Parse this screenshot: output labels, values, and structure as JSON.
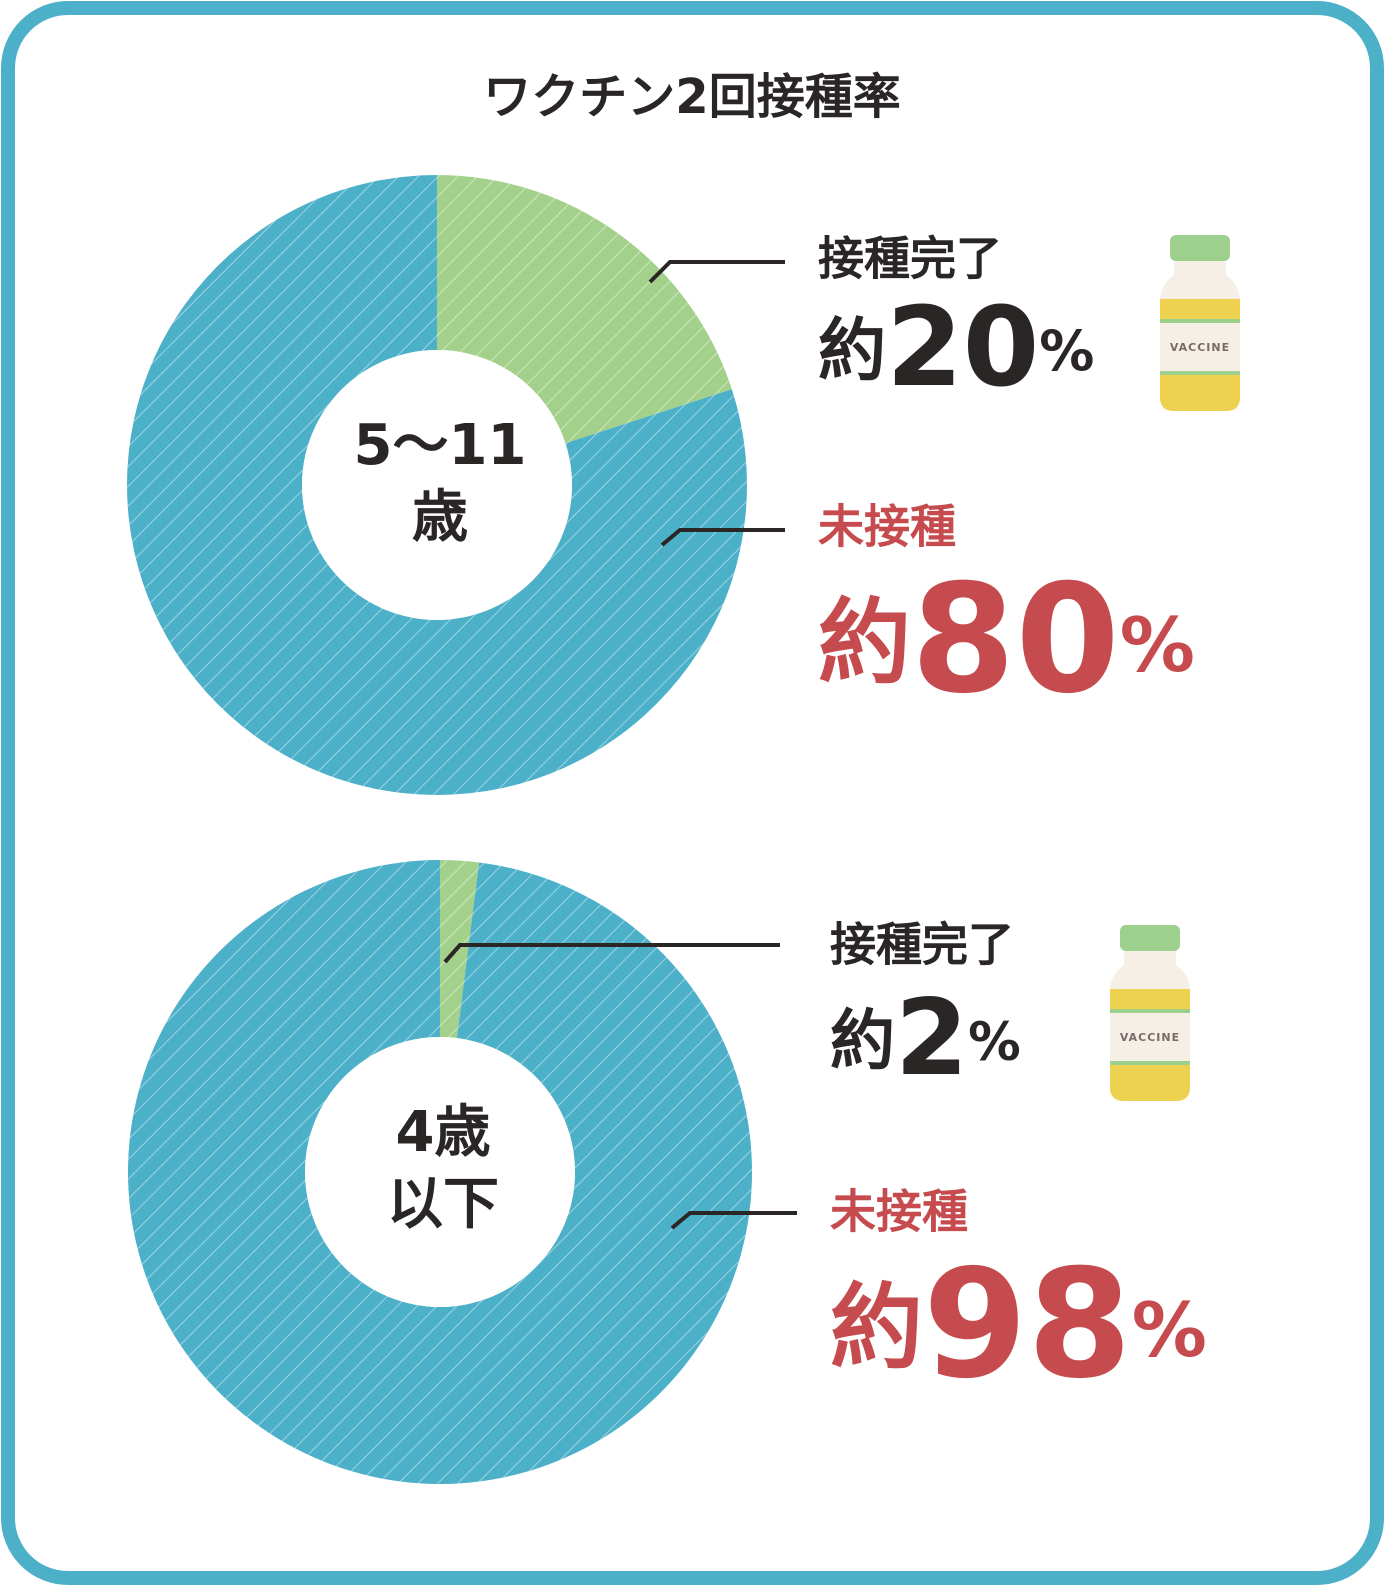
{
  "title": "ワクチン2回接種率",
  "chart_data": [
    {
      "type": "donut",
      "center_label": [
        "5〜11",
        "歳"
      ],
      "categories": [
        "接種完了",
        "未接種"
      ],
      "values": [
        20,
        80
      ],
      "value_labels": [
        "約20%",
        "約80%"
      ],
      "colors": [
        "#a3d18b",
        "#4cb0c9"
      ],
      "text_colors": [
        "#2b2626",
        "#c64b4e"
      ],
      "icon_label": "VACCINE"
    },
    {
      "type": "donut",
      "center_label": [
        "4歳",
        "以下"
      ],
      "categories": [
        "接種完了",
        "未接種"
      ],
      "values": [
        2,
        98
      ],
      "value_labels": [
        "約2%",
        "約98%"
      ],
      "colors": [
        "#a3d18b",
        "#4cb0c9"
      ],
      "text_colors": [
        "#2b2626",
        "#c64b4e"
      ],
      "icon_label": "VACCINE"
    }
  ]
}
